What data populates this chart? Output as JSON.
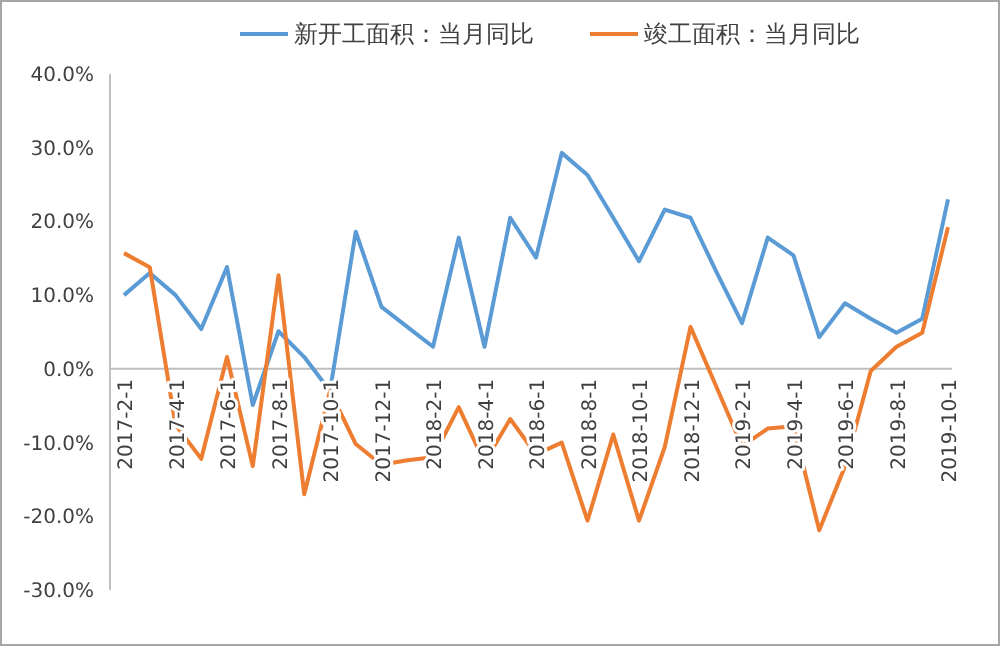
{
  "chart_data": {
    "type": "line",
    "categories": [
      "2017-2-1",
      null,
      "2017-4-1",
      null,
      "2017-6-1",
      null,
      "2017-8-1",
      null,
      "2017-10-1",
      null,
      "2017-12-1",
      null,
      "2018-2-1",
      null,
      "2018-4-1",
      null,
      "2018-6-1",
      null,
      "2018-8-1",
      null,
      "2018-10-1",
      null,
      "2018-12-1",
      null,
      "2019-2-1",
      null,
      "2019-4-1",
      null,
      "2019-6-1",
      null,
      "2019-8-1",
      null,
      "2019-10-1"
    ],
    "series": [
      {
        "name": "新开工面积：当月同比",
        "color": "#5b9bd5",
        "values": [
          10.0,
          13.0,
          10.0,
          5.4,
          13.8,
          -4.9,
          5.1,
          1.6,
          -3.0,
          18.6,
          8.4,
          5.7,
          3.0,
          17.8,
          3.0,
          20.5,
          15.1,
          29.3,
          26.3,
          20.5,
          14.6,
          21.6,
          20.5,
          13.2,
          6.2,
          17.8,
          15.4,
          4.3,
          8.9,
          6.8,
          4.9,
          6.8,
          23.0
        ]
      },
      {
        "name": "竣工面积：当月同比",
        "color": "#ed7d31",
        "values": [
          15.7,
          13.8,
          -7.6,
          -12.2,
          1.6,
          -13.2,
          12.7,
          -17.0,
          -3.0,
          -10.2,
          -13.0,
          -12.4,
          -12.0,
          -5.2,
          -12.7,
          -6.8,
          -11.6,
          -10.0,
          -20.6,
          -8.9,
          -20.6,
          -10.6,
          5.7,
          -2.4,
          -10.5,
          -8.1,
          -7.8,
          -21.9,
          -13.2,
          -0.3,
          3.0,
          4.9,
          19.2
        ]
      }
    ],
    "ylim": [
      -30,
      40
    ],
    "yticks": [
      {
        "value": -30,
        "label": "-30.0%"
      },
      {
        "value": -20,
        "label": "-20.0%"
      },
      {
        "value": -10,
        "label": "-10.0%"
      },
      {
        "value": 0,
        "label": "0.0%"
      },
      {
        "value": 10,
        "label": "10.0%"
      },
      {
        "value": 20,
        "label": "20.0%"
      },
      {
        "value": 30,
        "label": "30.0%"
      },
      {
        "value": 40,
        "label": "40.0%"
      }
    ],
    "legend": "top",
    "grid": false,
    "marker": "none",
    "line_style": "solid"
  }
}
